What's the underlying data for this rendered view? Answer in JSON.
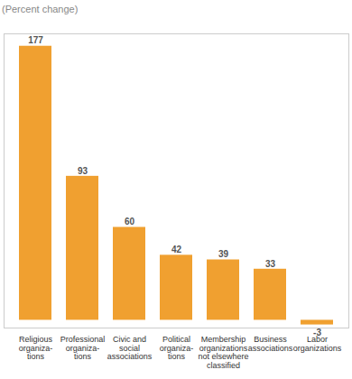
{
  "chart_data": {
    "type": "bar",
    "subtitle": "(Percent change)",
    "categories": [
      "Religious\norganiza-\ntions",
      "Professional\norganiza-\ntions",
      "Civic and\nsocial\nassociations",
      "Political\norganiza-\ntions",
      "Membership\norganizations\nnot elsewhere\nclassified",
      "Business\nassociations",
      "Labor\norganizations"
    ],
    "values": [
      177,
      93,
      60,
      42,
      39,
      33,
      -3
    ],
    "color": "#f0a030",
    "ylim": [
      -5,
      185
    ],
    "yticks": [],
    "grid": false,
    "data_labels": true,
    "tick_labels": "x"
  }
}
